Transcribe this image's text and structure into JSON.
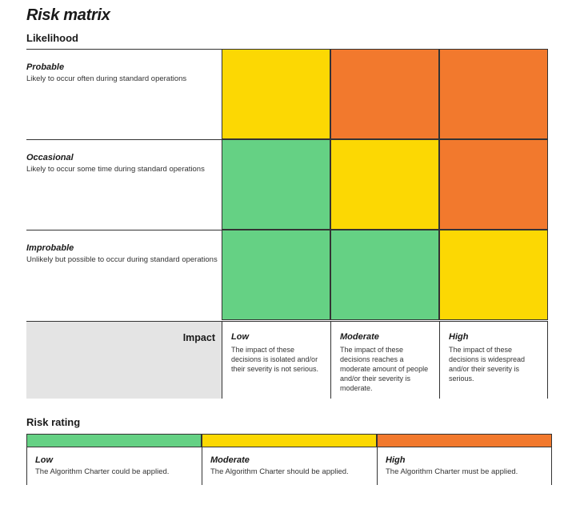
{
  "title": "Risk matrix",
  "likelihood_heading": "Likelihood",
  "colors": {
    "low": "#65d184",
    "moderate": "#fcd803",
    "high": "#f2792d",
    "impact_bg": "#e4e4e4"
  },
  "likelihood_rows": [
    {
      "name": "Probable",
      "description": "Likely to occur often during standard operations",
      "cells": [
        "moderate",
        "high",
        "high"
      ]
    },
    {
      "name": "Occasional",
      "description": "Likely to occur some time during standard operations",
      "cells": [
        "low",
        "moderate",
        "high"
      ]
    },
    {
      "name": "Improbable",
      "description": "Unlikely but possible to occur during standard operations",
      "cells": [
        "low",
        "low",
        "moderate"
      ]
    }
  ],
  "impact_label": "Impact",
  "impact_columns": [
    {
      "name": "Low",
      "description": "The impact of these decisions is isolated and/or their severity is not serious."
    },
    {
      "name": "Moderate",
      "description": "The impact of these decisions reaches a moderate amount of people and/or their severity is moderate."
    },
    {
      "name": "High",
      "description": "The impact of these decisions is widespread and/or their severity is serious."
    }
  ],
  "risk_rating_heading": "Risk rating",
  "risk_ratings": [
    {
      "name": "Low",
      "description": "The Algorithm Charter could be applied.",
      "color_key": "low"
    },
    {
      "name": "Moderate",
      "description": "The Algorithm Charter should be applied.",
      "color_key": "moderate"
    },
    {
      "name": "High",
      "description": "The Algorithm Charter must be applied.",
      "color_key": "high"
    }
  ]
}
